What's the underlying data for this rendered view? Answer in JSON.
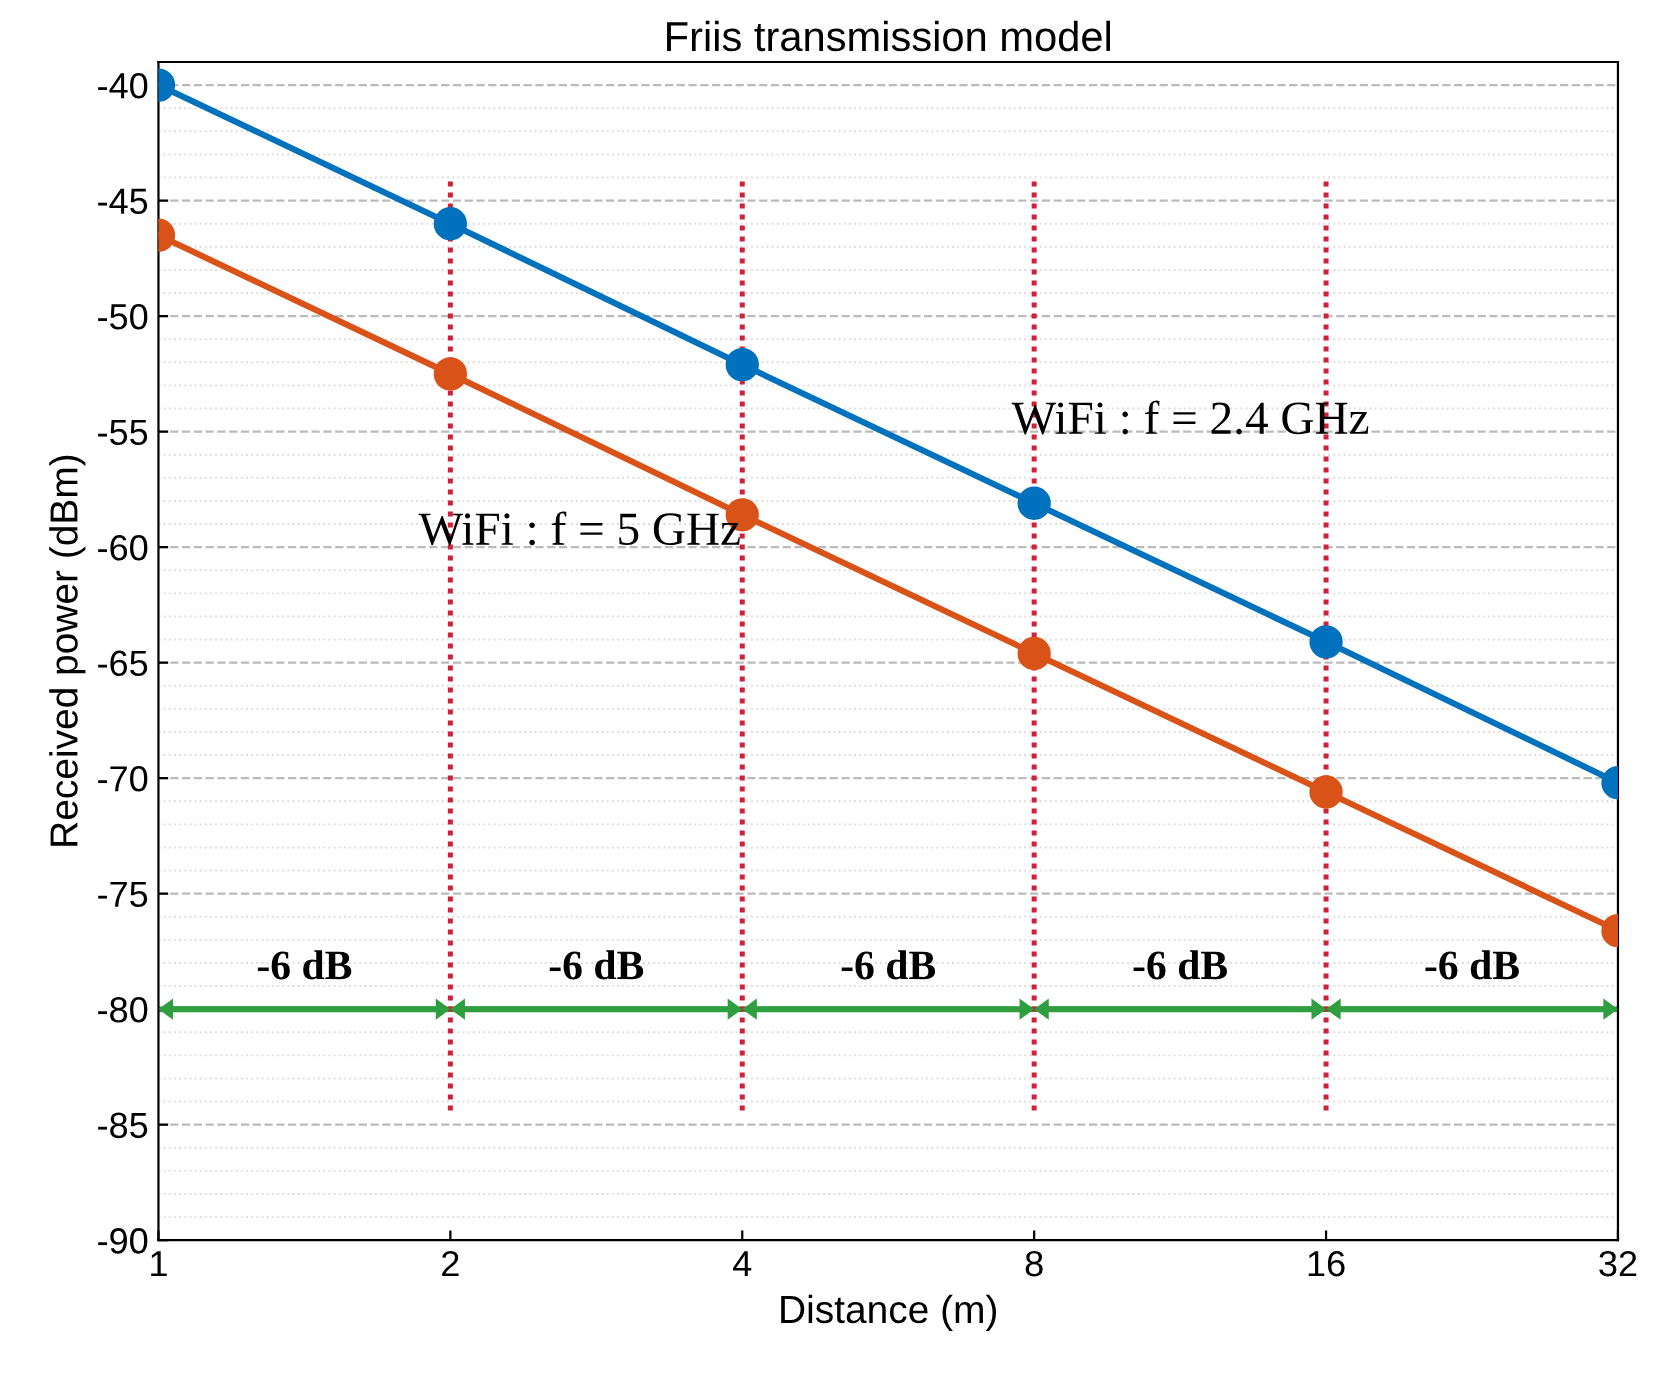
{
  "chart_data": {
    "type": "line",
    "title": "Friis transmission model",
    "xlabel": "Distance (m)",
    "ylabel": "Received power (dBm)",
    "x": [
      1,
      2,
      4,
      8,
      16,
      32
    ],
    "series": [
      {
        "name": "WiFi : f = 2.4 GHz",
        "color": "#0072bd",
        "values": [
          -40,
          -46,
          -52.1,
          -58.1,
          -64.1,
          -70.2
        ]
      },
      {
        "name": "WiFi : f = 5 GHz",
        "color": "#d95319",
        "values": [
          -46.5,
          -52.5,
          -58.6,
          -64.6,
          -70.6,
          -76.6
        ]
      }
    ],
    "log": "x",
    "xlim": [
      1,
      32
    ],
    "xticks": [
      1,
      2,
      4,
      8,
      16,
      32
    ],
    "ylim": [
      -90,
      -39
    ],
    "yticks": [
      -90,
      -85,
      -80,
      -75,
      -70,
      -65,
      -60,
      -55,
      -50,
      -45,
      -40
    ],
    "grid": "y",
    "marker": "circle",
    "line_style": "solid",
    "ref_lines": [
      {
        "axis": "y",
        "value": -80,
        "color": "#2e9e3e",
        "line_style": "solid"
      },
      {
        "axis": "x",
        "value": 2,
        "color": "#d0203a",
        "line_style": "dotted"
      },
      {
        "axis": "x",
        "value": 4,
        "color": "#d0203a",
        "line_style": "dotted"
      },
      {
        "axis": "x",
        "value": 8,
        "color": "#d0203a",
        "line_style": "dotted"
      },
      {
        "axis": "x",
        "value": 16,
        "color": "#d0203a",
        "line_style": "dotted"
      }
    ],
    "annotations": [
      "-6 dB",
      "-6 dB",
      "-6 dB",
      "-6 dB",
      "-6 dB"
    ]
  }
}
